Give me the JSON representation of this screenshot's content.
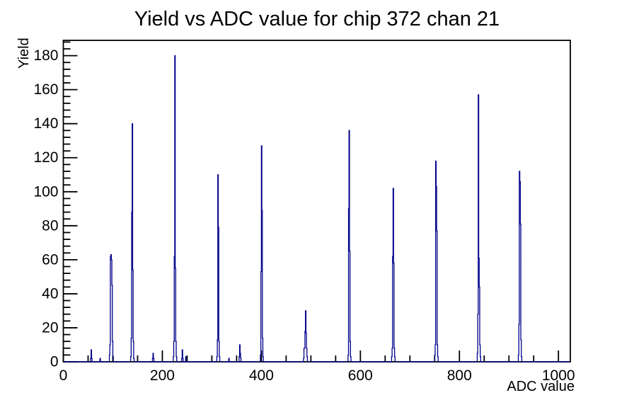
{
  "chart_data": {
    "type": "line",
    "subtype": "step-histogram",
    "title": "Yield vs ADC value for chip 372 chan 21",
    "xlabel": "ADC value",
    "ylabel": "Yield",
    "xlim": [
      0,
      1024
    ],
    "ylim": [
      0,
      189
    ],
    "x_major_tick_step": 200,
    "x_minor_tick_step": 50,
    "y_major_tick_step": 20,
    "y_minor_tick_step": 4,
    "x_tick_labels": [
      "0",
      "200",
      "400",
      "600",
      "800",
      "1000"
    ],
    "y_tick_labels": [
      "0",
      "20",
      "40",
      "60",
      "80",
      "100",
      "120",
      "140",
      "160",
      "180"
    ],
    "grid": false,
    "legend": false,
    "line_color": "#00008b",
    "axis_color": "#000000",
    "background_color": "#ffffff",
    "bin_width_adc": 1,
    "clusters": [
      {
        "start_adc": 55,
        "bins": [
          2,
          7,
          2
        ]
      },
      {
        "start_adc": 74,
        "bins": [
          2
        ]
      },
      {
        "start_adc": 93,
        "bins": [
          4,
          10,
          62,
          63,
          60,
          45,
          12,
          3
        ]
      },
      {
        "start_adc": 136,
        "bins": [
          3,
          14,
          88,
          140,
          54,
          12,
          2
        ]
      },
      {
        "start_adc": 180,
        "bins": [
          2,
          5,
          2
        ]
      },
      {
        "start_adc": 222,
        "bins": [
          3,
          12,
          62,
          180,
          55,
          12,
          3
        ]
      },
      {
        "start_adc": 239,
        "bins": [
          2,
          7,
          2
        ]
      },
      {
        "start_adc": 247,
        "bins": [
          3
        ]
      },
      {
        "start_adc": 310,
        "bins": [
          3,
          13,
          110,
          79,
          12,
          3
        ]
      },
      {
        "start_adc": 334,
        "bins": [
          2
        ]
      },
      {
        "start_adc": 355,
        "bins": [
          3,
          10,
          5,
          2
        ]
      },
      {
        "start_adc": 398,
        "bins": [
          4,
          53,
          127,
          89,
          14,
          3
        ]
      },
      {
        "start_adc": 485,
        "bins": [
          2,
          8,
          8,
          18,
          30,
          17,
          8,
          3
        ]
      },
      {
        "start_adc": 575,
        "bins": [
          4,
          90,
          136,
          65,
          12,
          3
        ]
      },
      {
        "start_adc": 663,
        "bins": [
          3,
          8,
          62,
          102,
          58,
          8,
          3
        ]
      },
      {
        "start_adc": 750,
        "bins": [
          4,
          10,
          118,
          103,
          77,
          10,
          3
        ]
      },
      {
        "start_adc": 836,
        "bins": [
          5,
          28,
          157,
          61,
          44,
          10,
          3
        ]
      },
      {
        "start_adc": 919,
        "bins": [
          4,
          22,
          112,
          106,
          81,
          13,
          3
        ]
      }
    ]
  }
}
